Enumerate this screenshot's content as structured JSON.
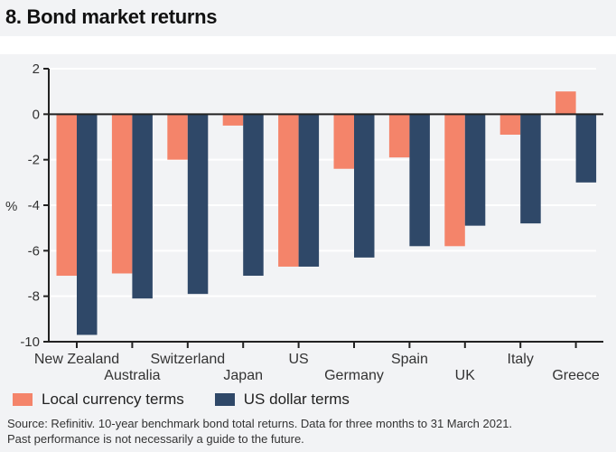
{
  "title": "8. Bond market returns",
  "chart_data": {
    "type": "bar",
    "ylabel": "%",
    "ylim": [
      -10,
      2
    ],
    "yticks": [
      2,
      0,
      -2,
      -4,
      -6,
      -8,
      -10
    ],
    "grid": true,
    "legend_placement": "bottom",
    "categories": [
      "New Zealand",
      "Australia",
      "Switzerland",
      "Japan",
      "US",
      "Germany",
      "Spain",
      "UK",
      "Italy",
      "Greece"
    ],
    "series": [
      {
        "name": "Local currency terms",
        "color": "#f4846a",
        "values": [
          -7.1,
          -7.0,
          -2.0,
          -0.5,
          -6.7,
          -2.4,
          -1.9,
          -5.8,
          -0.9,
          1.0
        ]
      },
      {
        "name": "US dollar terms",
        "color": "#2f4868",
        "values": [
          -9.7,
          -8.1,
          -7.9,
          -7.1,
          -6.7,
          -6.3,
          -5.8,
          -4.9,
          -4.8,
          -3.0
        ]
      }
    ]
  },
  "source": {
    "line1": "Source: Refinitiv. 10-year benchmark bond total returns. Data for three months to 31 March 2021.",
    "line2": "Past performance is not necessarily a guide to the future."
  }
}
